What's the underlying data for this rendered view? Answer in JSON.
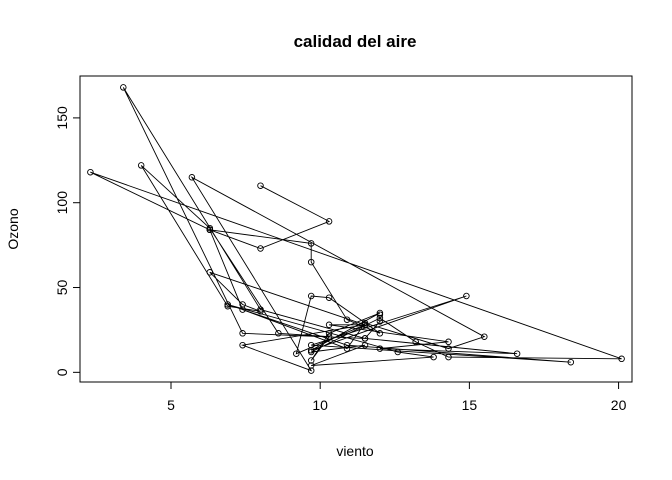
{
  "chart_data": {
    "type": "line",
    "title": "calidad del aire",
    "xlabel": "viento",
    "ylabel": "Ozono",
    "xlim": [
      1.95,
      20.45
    ],
    "ylim": [
      -5.7,
      174.7
    ],
    "xticks": [
      "5",
      "10",
      "15",
      "20"
    ],
    "yticks": [
      "0",
      "50",
      "100",
      "150"
    ],
    "grid": false,
    "marker": "open-circle",
    "color": "#000000",
    "series": [
      {
        "x": [
          8.0,
          10.3,
          8.0,
          6.3,
          9.7,
          9.7,
          10.9,
          12.0,
          10.3,
          9.7,
          9.2,
          11.5,
          6.3,
          7.4,
          8.0,
          6.9,
          4.0,
          6.3,
          8.6,
          10.3,
          9.7,
          10.3,
          12.0,
          9.7,
          14.9,
          9.7,
          18.4,
          10.9,
          6.9,
          12.6,
          13.8,
          9.7,
          11.5,
          9.7,
          12.0,
          13.2,
          14.3,
          20.1,
          2.3,
          6.3,
          7.4,
          10.9,
          11.5,
          14.3,
          15.5,
          5.7,
          9.7,
          7.4,
          11.5,
          10.3,
          14.3,
          12.0,
          16.6,
          11.5,
          8.0,
          3.4,
          7.4,
          11.5,
          12.0,
          12.0
        ],
        "y": [
          110,
          89,
          73,
          84,
          76,
          65,
          31,
          23,
          44,
          45,
          11,
          28,
          59,
          40,
          36,
          39,
          122,
          85,
          23,
          21,
          7,
          23,
          35,
          13,
          45,
          16,
          6,
          16,
          40,
          12,
          9,
          4,
          16,
          12,
          32,
          18,
          9,
          8,
          118,
          84,
          37,
          14,
          29,
          14,
          21,
          115,
          1,
          16,
          28,
          28,
          18,
          14,
          11,
          20,
          37,
          168,
          23,
          20,
          30,
          34
        ]
      }
    ]
  }
}
